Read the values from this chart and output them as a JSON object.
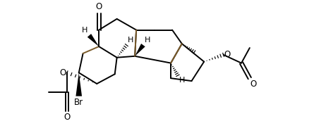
{
  "bg_color": "#ffffff",
  "line_color": "#000000",
  "brown_color": "#7B5B2A",
  "lw": 1.4,
  "fig_w": 4.45,
  "fig_h": 1.89,
  "dpi": 100,
  "xlim": [
    -0.08,
    1.52
  ],
  "ylim": [
    0.08,
    1.0
  ],
  "fs": 8.5
}
